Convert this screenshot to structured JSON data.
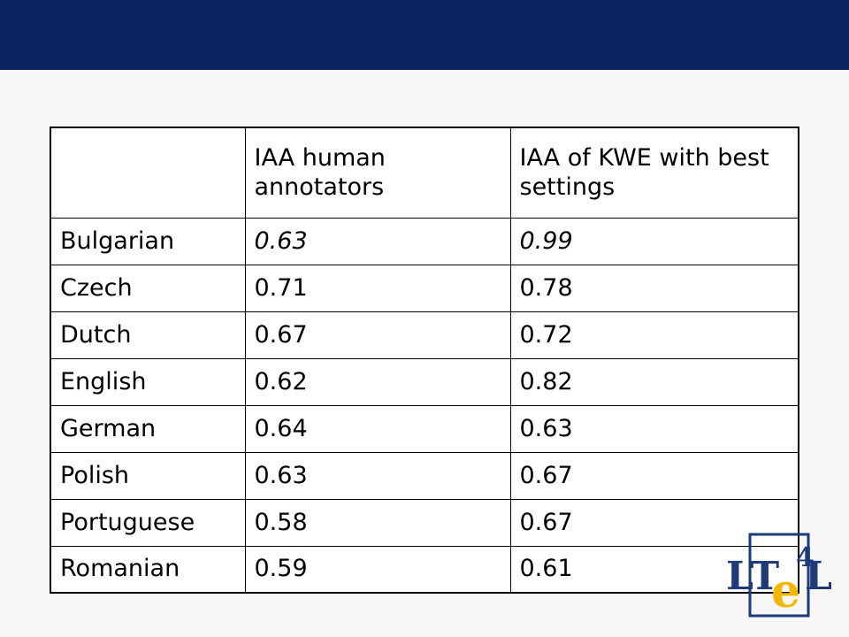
{
  "table": {
    "headers": [
      "",
      "IAA human annotators",
      "IAA of KWE with best settings"
    ],
    "rows": [
      {
        "language": "Bulgarian",
        "human": "0.63",
        "kwe": "0.99"
      },
      {
        "language": "Czech",
        "human": "0.71",
        "kwe": "0.78"
      },
      {
        "language": "Dutch",
        "human": "0.67",
        "kwe": "0.72"
      },
      {
        "language": "English",
        "human": "0.62",
        "kwe": "0.82"
      },
      {
        "language": "German",
        "human": "0.64",
        "kwe": "0.63"
      },
      {
        "language": "Polish",
        "human": "0.63",
        "kwe": "0.67"
      },
      {
        "language": "Portuguese",
        "human": "0.58",
        "kwe": "0.67"
      },
      {
        "language": "Romanian",
        "human": "0.59",
        "kwe": "0.61"
      }
    ]
  },
  "logo": {
    "text_lt": "LT",
    "text_4": "4",
    "text_e": "e",
    "text_l": "L",
    "colors": {
      "navy": "#1e3a78",
      "gold": "#f5b800"
    }
  },
  "colors": {
    "top_bar": "#0c2461",
    "background": "#f7f7f7"
  }
}
